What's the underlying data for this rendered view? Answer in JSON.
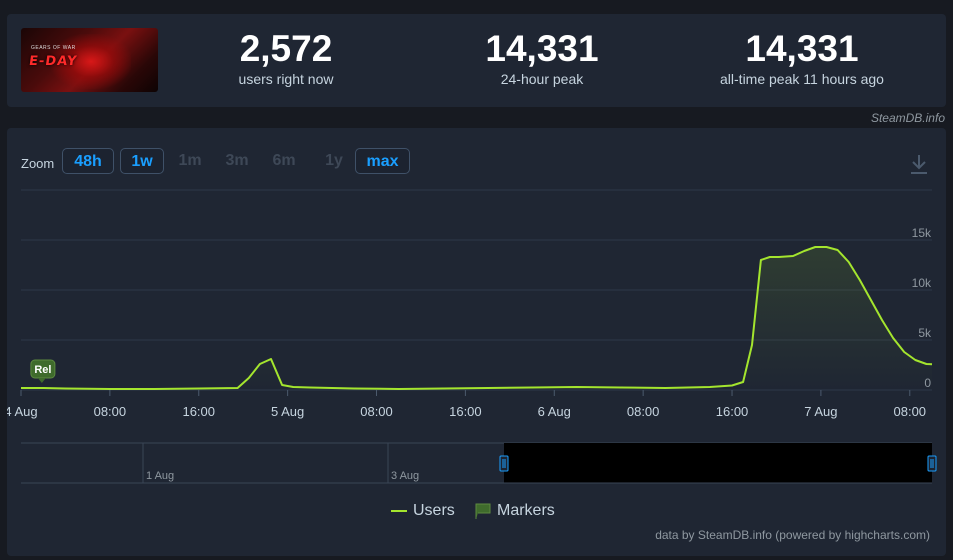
{
  "stats": {
    "current": {
      "value": "2,572",
      "label": "users right now"
    },
    "peak24": {
      "value": "14,331",
      "label": "24-hour peak"
    },
    "alltime": {
      "value": "14,331",
      "label": "all-time peak 11 hours ago"
    }
  },
  "game": {
    "logo_text": "E-DAY",
    "small_text": "GEARS OF WAR"
  },
  "credit_top": "SteamDB.info",
  "zoom": {
    "label": "Zoom",
    "buttons": [
      {
        "label": "48h",
        "state": "active"
      },
      {
        "label": "1w",
        "state": "active"
      },
      {
        "label": "1m",
        "state": "disabled"
      },
      {
        "label": "3m",
        "state": "disabled"
      },
      {
        "label": "6m",
        "state": "disabled"
      },
      {
        "label": "1y",
        "state": "disabled"
      },
      {
        "label": "max",
        "state": "active"
      }
    ]
  },
  "icons": {
    "download": "download-icon"
  },
  "legend": {
    "users": "Users",
    "markers": "Markers"
  },
  "credit_bottom": "data by SteamDB.info (powered by highcharts.com)",
  "colors": {
    "line": "#a4e52e",
    "accent": "#1a9fff",
    "marker": "#3f6b2c"
  },
  "chart_data": {
    "type": "line",
    "x_unit": "hours since 4 Aug 00:00",
    "xlim": [
      0,
      82
    ],
    "ylim": [
      0,
      15000
    ],
    "x_ticks": [
      {
        "x": 0,
        "label": "4 Aug"
      },
      {
        "x": 8,
        "label": "08:00"
      },
      {
        "x": 16,
        "label": "16:00"
      },
      {
        "x": 24,
        "label": "5 Aug"
      },
      {
        "x": 32,
        "label": "08:00"
      },
      {
        "x": 40,
        "label": "16:00"
      },
      {
        "x": 48,
        "label": "6 Aug"
      },
      {
        "x": 56,
        "label": "08:00"
      },
      {
        "x": 64,
        "label": "16:00"
      },
      {
        "x": 72,
        "label": "7 Aug"
      },
      {
        "x": 80,
        "label": "08:00"
      }
    ],
    "y_ticks": [
      {
        "y": 0,
        "label": "0"
      },
      {
        "y": 5000,
        "label": "5k"
      },
      {
        "y": 10000,
        "label": "10k"
      },
      {
        "y": 15000,
        "label": "15k"
      }
    ],
    "grid": true,
    "series": [
      {
        "name": "Users",
        "x": [
          0,
          2,
          4,
          8,
          12,
          16,
          19.5,
          20.5,
          21.5,
          22.5,
          23.5,
          24.5,
          26,
          30,
          34,
          38,
          42,
          46,
          50,
          54,
          58,
          62,
          64,
          65,
          65.8,
          66.6,
          67.4,
          68.2,
          69.5,
          70.5,
          71.5,
          72.5,
          73.5,
          74.5,
          75.5,
          76.5,
          77.5,
          78.5,
          79.5,
          80.5,
          81.5,
          82
        ],
        "y": [
          200,
          200,
          150,
          100,
          100,
          150,
          200,
          1200,
          2600,
          3100,
          500,
          300,
          250,
          150,
          100,
          150,
          200,
          250,
          300,
          250,
          200,
          300,
          450,
          800,
          4500,
          13000,
          13300,
          13300,
          13400,
          13900,
          14300,
          14300,
          14000,
          12800,
          11000,
          9000,
          7000,
          5200,
          3800,
          3000,
          2600,
          2572
        ]
      }
    ],
    "markers": [
      {
        "x": 0.8,
        "label": "Rel"
      }
    ],
    "navigator": {
      "labels": [
        {
          "label": "1 Aug"
        },
        {
          "label": "3 Aug"
        }
      ]
    },
    "legend_position": "bottom-center"
  }
}
